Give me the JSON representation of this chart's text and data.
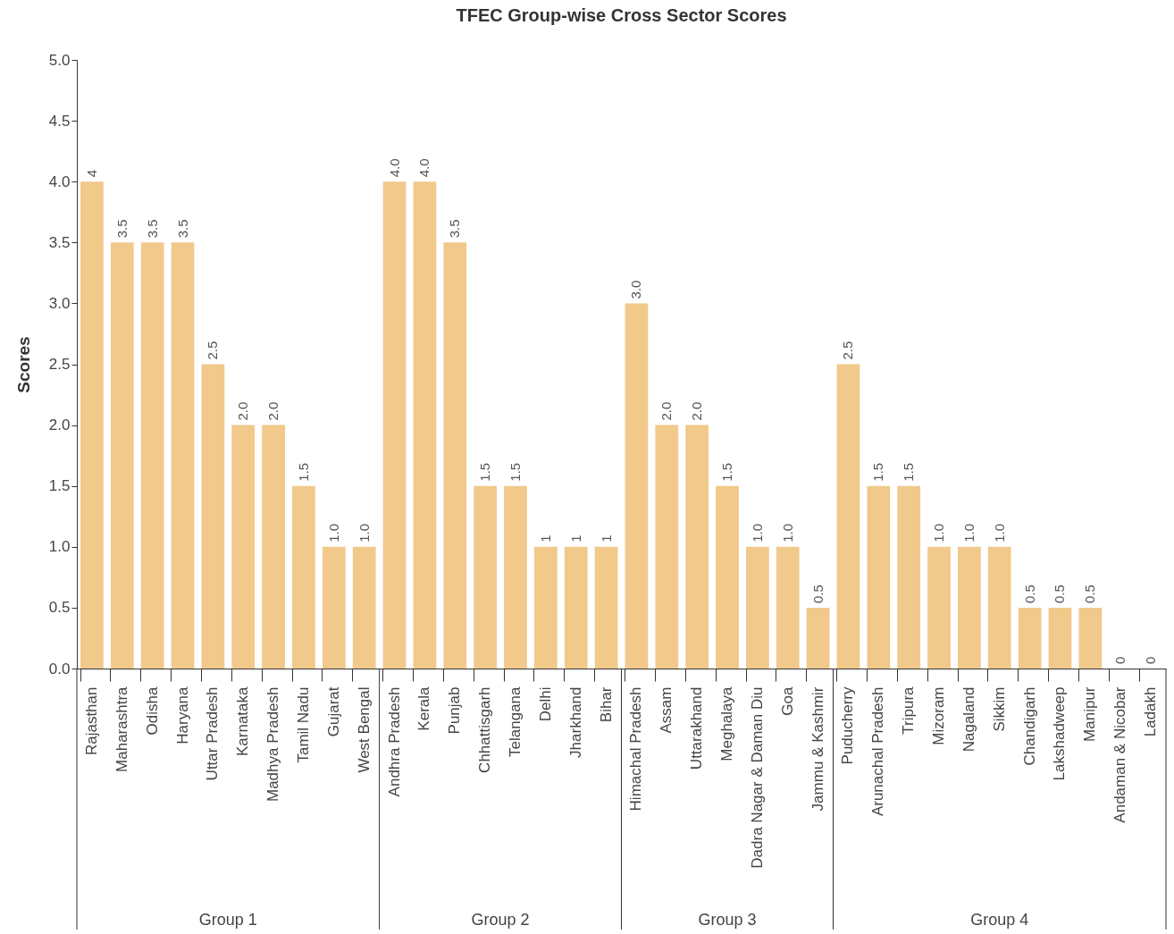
{
  "chart_data": {
    "type": "bar",
    "title": "TFEC Group-wise Cross Sector Scores",
    "ylabel": "Scores",
    "categories": [
      "Rajasthan",
      "Maharashtra",
      "Odisha",
      "Haryana",
      "Uttar Pradesh",
      "Karnataka",
      "Madhya Pradesh",
      "Tamil Nadu",
      "Gujarat",
      "West Bengal",
      "Andhra Pradesh",
      "Kerala",
      "Punjab",
      "Chhattisgarh",
      "Telangana",
      "Delhi",
      "Jharkhand",
      "Bihar",
      "Himachal Pradesh",
      "Assam",
      "Uttarakhand",
      "Meghalaya",
      "Dadra Nagar & Daman Diu",
      "Goa",
      "Jammu & Kashmir",
      "Puducherry",
      "Arunachal Pradesh",
      "Tripura",
      "Mizoram",
      "Nagaland",
      "Sikkim",
      "Chandigarh",
      "Lakshadweep",
      "Manipur",
      "Andaman & Nicobar",
      "Ladakh"
    ],
    "values": [
      4,
      3.5,
      3.5,
      3.5,
      2.5,
      2,
      2,
      1.5,
      1,
      1,
      4,
      4,
      3.5,
      1.5,
      1.5,
      1,
      1,
      1,
      3,
      2,
      2,
      1.5,
      1,
      1,
      0.5,
      2.5,
      1.5,
      1.5,
      1,
      1,
      1,
      0.5,
      0.5,
      0.5,
      0,
      0
    ],
    "value_labels": [
      "4",
      "3.5",
      "3.5",
      "3.5",
      "2.5",
      "2.0",
      "2.0",
      "1.5",
      "1.0",
      "1.0",
      "4.0",
      "4.0",
      "3.5",
      "1.5",
      "1.5",
      "1",
      "1",
      "1",
      "3.0",
      "2.0",
      "2.0",
      "1.5",
      "1.0",
      "1.0",
      "0.5",
      "2.5",
      "1.5",
      "1.5",
      "1.0",
      "1.0",
      "1.0",
      "0.5",
      "0.5",
      "0.5",
      "0",
      "0"
    ],
    "color": "#f0c98b",
    "ylim": [
      0,
      5
    ],
    "yticks": [
      {
        "value": 0,
        "label": "0.0"
      },
      {
        "value": 0.5,
        "label": "0.5"
      },
      {
        "value": 1,
        "label": "1.0"
      },
      {
        "value": 1.5,
        "label": "1.5"
      },
      {
        "value": 2,
        "label": "2.0"
      },
      {
        "value": 2.5,
        "label": "2.5"
      },
      {
        "value": 3,
        "label": "3.0"
      },
      {
        "value": 3.5,
        "label": "3.5"
      },
      {
        "value": 4,
        "label": "4.0"
      },
      {
        "value": 4.5,
        "label": "4.5"
      },
      {
        "value": 5,
        "label": "5.0"
      }
    ],
    "annotations": [
      "Group 1",
      "Group 2",
      "Group 3",
      "Group 4"
    ],
    "grid": false
  }
}
